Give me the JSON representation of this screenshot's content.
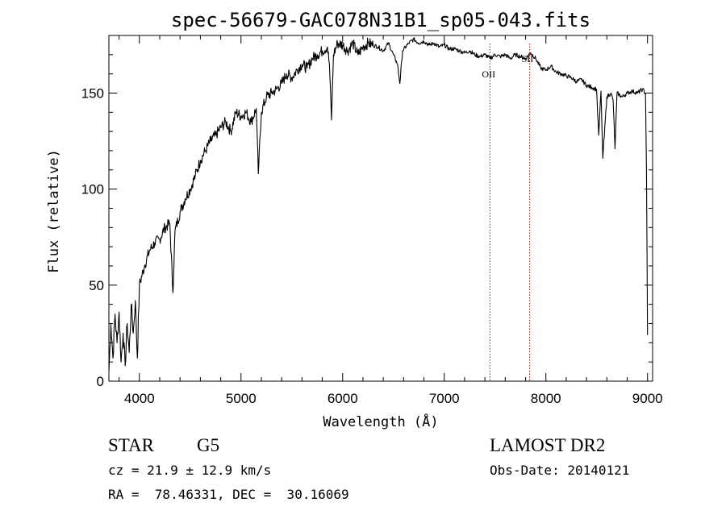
{
  "chart_data": {
    "type": "line",
    "title": "spec-56679-GAC078N31B1_sp05-043.fits",
    "xlabel": "Wavelength (Å)",
    "ylabel": "Flux (relative)",
    "xlim": [
      3700,
      9050
    ],
    "ylim": [
      0,
      180
    ],
    "x_ticks": [
      4000,
      5000,
      6000,
      7000,
      8000,
      9000
    ],
    "y_ticks": [
      0,
      50,
      100,
      150
    ],
    "grid": false,
    "line_color": "#000000",
    "marker_color": "#cc0000",
    "line_markers": [
      {
        "label": "OII",
        "x": 7450
      },
      {
        "label": "SII",
        "x": 7840
      }
    ],
    "series": [
      {
        "x": [
          3700,
          3720,
          3740,
          3760,
          3780,
          3800,
          3820,
          3840,
          3860,
          3880,
          3900,
          3920,
          3940,
          3960,
          3980,
          4000,
          4050,
          4100,
          4150,
          4200,
          4250,
          4300,
          4330,
          4350,
          4400,
          4450,
          4500,
          4550,
          4600,
          4650,
          4700,
          4750,
          4800,
          4850,
          4900,
          4950,
          5000,
          5050,
          5100,
          5150,
          5170,
          5200,
          5250,
          5300,
          5350,
          5400,
          5450,
          5500,
          5550,
          5600,
          5650,
          5700,
          5750,
          5800,
          5850,
          5870,
          5890,
          5910,
          5950,
          6000,
          6050,
          6100,
          6150,
          6200,
          6250,
          6300,
          6350,
          6400,
          6450,
          6500,
          6540,
          6563,
          6590,
          6650,
          6700,
          6750,
          6800,
          6850,
          6900,
          6950,
          7000,
          7050,
          7100,
          7150,
          7200,
          7250,
          7300,
          7350,
          7400,
          7450,
          7500,
          7550,
          7600,
          7650,
          7700,
          7750,
          7800,
          7850,
          7900,
          7950,
          8000,
          8050,
          8100,
          8150,
          8200,
          8250,
          8300,
          8350,
          8400,
          8450,
          8498,
          8520,
          8542,
          8560,
          8600,
          8640,
          8662,
          8680,
          8700,
          8750,
          8800,
          8850,
          8900,
          8950,
          8980,
          8990,
          9000
        ],
        "y": [
          5,
          30,
          12,
          35,
          20,
          36,
          10,
          25,
          8,
          30,
          15,
          40,
          25,
          42,
          12,
          50,
          60,
          68,
          72,
          74,
          80,
          82,
          46,
          78,
          88,
          95,
          100,
          107,
          115,
          120,
          125,
          128,
          132,
          135,
          130,
          140,
          138,
          140,
          135,
          142,
          108,
          140,
          148,
          150,
          152,
          155,
          160,
          158,
          162,
          165,
          163,
          168,
          170,
          172,
          174,
          165,
          136,
          170,
          176,
          175,
          172,
          176,
          170,
          174,
          176,
          175,
          174,
          172,
          176,
          170,
          165,
          155,
          172,
          176,
          178,
          176,
          177,
          175,
          176,
          174,
          175,
          173,
          173,
          172,
          171,
          172,
          170,
          169,
          170,
          168,
          170,
          169,
          170,
          168,
          170,
          169,
          168,
          171,
          168,
          163,
          162,
          164,
          161,
          160,
          159,
          158,
          156,
          157,
          154,
          153,
          152,
          128,
          151,
          116,
          148,
          150,
          146,
          121,
          150,
          148,
          150,
          151,
          150,
          152,
          150,
          110,
          24
        ]
      }
    ]
  },
  "info": {
    "object_class": "STAR",
    "subclass": "G5",
    "survey": "LAMOST DR2",
    "cz": "cz = 21.9 ± 12.9 km/s",
    "obs_date": "Obs-Date: 20140121",
    "coords": "RA =  78.46331, DEC =  30.16069"
  }
}
